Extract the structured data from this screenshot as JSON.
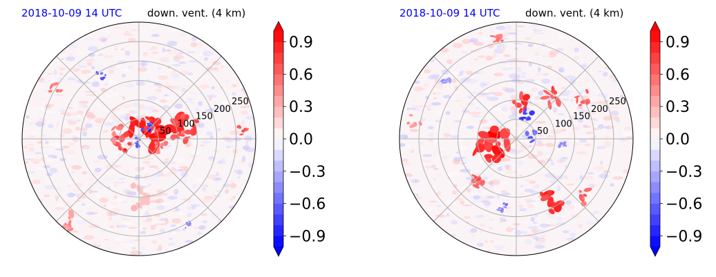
{
  "chart_data": [
    {
      "type": "heatmap",
      "projection": "polar",
      "title_left": "2018-10-09 14 UTC",
      "title_right": "down. vent. (4 km)",
      "radial_ticks": [
        50,
        100,
        150,
        200,
        250
      ],
      "radial_max": 300,
      "grid": true,
      "colorbar": {
        "ticks": [
          "0.9",
          "0.6",
          "0.3",
          "0.0",
          "−0.3",
          "−0.6",
          "−0.9"
        ],
        "tick_values": [
          0.9,
          0.6,
          0.3,
          0.0,
          -0.3,
          -0.6,
          -0.9
        ],
        "vmin": -1.0,
        "vmax": 1.0,
        "extend": "both",
        "colormap": "bwr"
      },
      "features": [
        {
          "theta": 40,
          "r": 20,
          "value": 1.0,
          "size": 30
        },
        {
          "theta": 35,
          "r": 45,
          "value": 0.9,
          "size": 18
        },
        {
          "theta": 20,
          "r": 95,
          "value": 0.9,
          "size": 22
        },
        {
          "theta": 15,
          "r": 130,
          "value": 0.8,
          "size": 18
        },
        {
          "theta": 5,
          "r": 110,
          "value": 0.7,
          "size": 14
        },
        {
          "theta": 190,
          "r": 40,
          "value": 0.9,
          "size": 16
        },
        {
          "theta": 165,
          "r": 60,
          "value": 0.6,
          "size": 14
        },
        {
          "theta": -20,
          "r": 60,
          "value": 0.6,
          "size": 12
        },
        {
          "theta": 60,
          "r": 35,
          "value": -0.9,
          "size": 10
        },
        {
          "theta": 250,
          "r": 10,
          "value": -0.8,
          "size": 8
        },
        {
          "theta": 150,
          "r": 250,
          "value": 0.6,
          "size": 12
        },
        {
          "theta": 230,
          "r": 280,
          "value": 0.5,
          "size": 16
        },
        {
          "theta": 120,
          "r": 190,
          "value": -0.7,
          "size": 8
        },
        {
          "theta": 5,
          "r": 270,
          "value": 0.7,
          "size": 10
        },
        {
          "theta": 300,
          "r": 260,
          "value": -0.6,
          "size": 8
        },
        {
          "theta": 270,
          "r": 150,
          "value": 0.3,
          "size": 20
        }
      ]
    },
    {
      "type": "heatmap",
      "projection": "polar",
      "title_left": "2018-10-09 14 UTC",
      "title_right": "down. vent. (4 km)",
      "radial_ticks": [
        50,
        100,
        150,
        200,
        250
      ],
      "radial_max": 300,
      "grid": true,
      "colorbar": {
        "ticks": [
          "0.9",
          "0.6",
          "0.3",
          "0.0",
          "−0.3",
          "−0.6",
          "−0.9"
        ],
        "tick_values": [
          0.9,
          0.6,
          0.3,
          0.0,
          -0.3,
          -0.6,
          -0.9
        ],
        "vmin": -1.0,
        "vmax": 1.0,
        "extend": "both",
        "colormap": "bwr"
      },
      "features": [
        {
          "theta": 190,
          "r": 55,
          "value": 1.0,
          "size": 30
        },
        {
          "theta": 200,
          "r": 80,
          "value": 0.9,
          "size": 22
        },
        {
          "theta": 60,
          "r": 60,
          "value": -0.9,
          "size": 14
        },
        {
          "theta": 80,
          "r": 90,
          "value": 0.9,
          "size": 18
        },
        {
          "theta": 50,
          "r": 140,
          "value": 0.8,
          "size": 16
        },
        {
          "theta": 30,
          "r": 200,
          "value": 0.7,
          "size": 14
        },
        {
          "theta": 300,
          "r": 180,
          "value": 0.9,
          "size": 20
        },
        {
          "theta": 320,
          "r": 230,
          "value": 0.7,
          "size": 14
        },
        {
          "theta": 230,
          "r": 150,
          "value": 0.8,
          "size": 14
        },
        {
          "theta": 260,
          "r": 180,
          "value": -0.6,
          "size": 10
        },
        {
          "theta": 100,
          "r": 270,
          "value": 0.6,
          "size": 12
        },
        {
          "theta": 140,
          "r": 240,
          "value": -0.5,
          "size": 10
        },
        {
          "theta": 170,
          "r": 270,
          "value": 0.5,
          "size": 12
        },
        {
          "theta": 350,
          "r": 120,
          "value": -0.5,
          "size": 8
        },
        {
          "theta": 10,
          "r": 40,
          "value": -0.7,
          "size": 10
        }
      ]
    }
  ]
}
